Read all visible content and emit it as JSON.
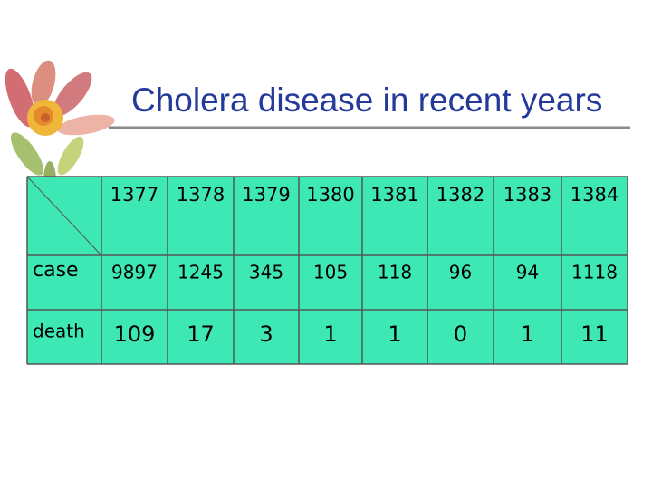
{
  "header": {
    "title": "Cholera disease in recent years"
  },
  "table": {
    "columns": [
      "1377",
      "1378",
      "1379",
      "1380",
      "1381",
      "1382",
      "1383",
      "1384"
    ],
    "rows": [
      {
        "label": "case",
        "values": [
          9897,
          1245,
          345,
          105,
          118,
          96,
          94,
          1118
        ]
      },
      {
        "label": "death",
        "values": [
          109,
          17,
          3,
          1,
          1,
          0,
          1,
          11
        ]
      }
    ]
  }
}
